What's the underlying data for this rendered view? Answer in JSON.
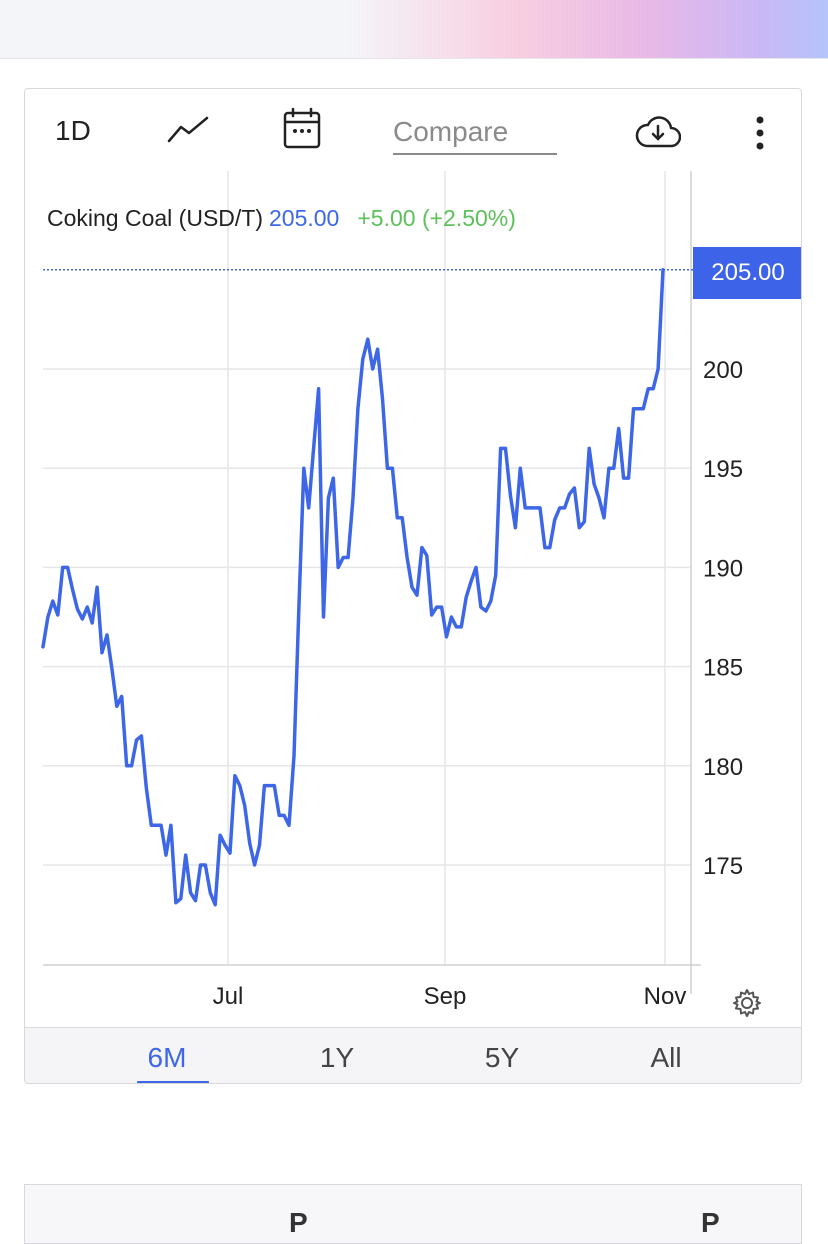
{
  "toolbar": {
    "interval_label": "1D",
    "chart_type_icon": "line-chart-icon",
    "calendar_icon": "calendar-icon",
    "compare_placeholder": "Compare",
    "download_icon": "cloud-download-icon",
    "more_icon": "more-vertical-icon"
  },
  "legend": {
    "name": "Coking Coal (USD/T)",
    "price": "205.00",
    "change": "+5.00 (+2.50%)"
  },
  "price_badge": "205.00",
  "range_tabs": [
    {
      "label": "6M",
      "active": true
    },
    {
      "label": "1Y",
      "active": false
    },
    {
      "label": "5Y",
      "active": false
    },
    {
      "label": "All",
      "active": false
    }
  ],
  "settings_icon": "gear-icon",
  "colors": {
    "line": "#3d67e6",
    "badge": "#3c63e8",
    "positive_change": "#5cc15a",
    "grid": "#e6e6e6"
  },
  "bottom_table": {
    "headers": [
      "P",
      "P"
    ]
  },
  "chart_data": {
    "type": "line",
    "series": [
      {
        "values": [
          186.0,
          187.5,
          188.3,
          187.6,
          190.0,
          190.0,
          188.9,
          187.9,
          187.4,
          188.0,
          187.2,
          189.0,
          185.7,
          186.6,
          184.9,
          183.0,
          183.5,
          180.0,
          180.0,
          181.3,
          181.5,
          178.9,
          177.0,
          177.0,
          177.0,
          175.5,
          177.0,
          173.1,
          173.3,
          175.5,
          173.6,
          173.2,
          175.0,
          175.0,
          173.6,
          173.0,
          176.5,
          176.0,
          175.6,
          179.5,
          179.0,
          178.0,
          176.1,
          175.0,
          176.0,
          179.0,
          179.0,
          179.0,
          177.5,
          177.5,
          177.0,
          180.5,
          188.0,
          195.0,
          193.0,
          196.0,
          199.0,
          187.5,
          193.5,
          194.5,
          190.0,
          190.5,
          190.5,
          193.5,
          198.0,
          200.5,
          201.5,
          200.0,
          201.0,
          198.5,
          195.0,
          195.0,
          192.5,
          192.5,
          190.5,
          189.0,
          188.6,
          191.0,
          190.6,
          187.6,
          188.0,
          188.0,
          186.5,
          187.5,
          187.0,
          187.0,
          188.5,
          189.3,
          190.0,
          188.0,
          187.8,
          188.3,
          189.6,
          196.0,
          196.0,
          193.6,
          192.0,
          195.0,
          193.0,
          193.0,
          193.0,
          193.0,
          191.0,
          191.0,
          192.4,
          193.0,
          193.0,
          193.7,
          194.0,
          192.0,
          192.3,
          196.0,
          194.2,
          193.5,
          192.5,
          195.0,
          195.0,
          197.0,
          194.5,
          194.5,
          198.0,
          198.0,
          198.0,
          199.0,
          199.0,
          200.0,
          205.0
        ]
      }
    ],
    "x_tick_labels": [
      "Jul",
      "Sep",
      "Nov"
    ],
    "y_tick_labels": [
      "175",
      "180",
      "185",
      "190",
      "195",
      "200"
    ],
    "y_ticks": [
      175,
      180,
      185,
      190,
      195,
      200
    ],
    "ylim": [
      170,
      210
    ],
    "last_value": 205.0,
    "grid": true
  }
}
